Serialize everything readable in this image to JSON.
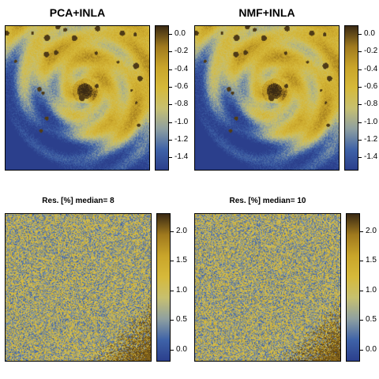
{
  "panels": [
    {
      "title": "PCA+INLA",
      "kind": "storm",
      "colorbar_ticks": [
        "0.0",
        "-0.2",
        "-0.4",
        "-0.6",
        "-0.8",
        "-1.0",
        "-1.2",
        "-1.4"
      ],
      "colorbar_range": [
        -1.55,
        0.1
      ]
    },
    {
      "title": "NMF+INLA",
      "kind": "storm",
      "colorbar_ticks": [
        "0.0",
        "-0.2",
        "-0.4",
        "-0.6",
        "-0.8",
        "-1.0",
        "-1.2",
        "-1.4"
      ],
      "colorbar_range": [
        -1.55,
        0.1
      ]
    },
    {
      "title": "Res. [%]  median= 8",
      "kind": "residual",
      "colorbar_ticks": [
        "2.0",
        "1.5",
        "1.0",
        "0.5",
        "0.0"
      ],
      "colorbar_range": [
        -0.2,
        2.3
      ]
    },
    {
      "title": "Res. [%]  median= 10",
      "kind": "residual",
      "colorbar_ticks": [
        "2.0",
        "1.5",
        "1.0",
        "0.5",
        "0.0"
      ],
      "colorbar_range": [
        -0.2,
        2.3
      ]
    }
  ],
  "colormap": [
    "#2b3f8c",
    "#3f63a8",
    "#8fa0a0",
    "#c7c070",
    "#d6b93a",
    "#c9a52a",
    "#a07a1e",
    "#3a2a14"
  ],
  "chart_data": [
    {
      "type": "heatmap",
      "title": "PCA+INLA",
      "colorbar_ticks": [
        0.0,
        -0.2,
        -0.4,
        -0.6,
        -0.8,
        -1.0,
        -1.2,
        -1.4
      ]
    },
    {
      "type": "heatmap",
      "title": "NMF+INLA",
      "colorbar_ticks": [
        0.0,
        -0.2,
        -0.4,
        -0.6,
        -0.8,
        -1.0,
        -1.2,
        -1.4
      ]
    },
    {
      "type": "heatmap",
      "title": "Res. [%]  median= 8",
      "colorbar_ticks": [
        2.0,
        1.5,
        1.0,
        0.5,
        0.0
      ]
    },
    {
      "type": "heatmap",
      "title": "Res. [%]  median= 10",
      "colorbar_ticks": [
        2.0,
        1.5,
        1.0,
        0.5,
        0.0
      ]
    }
  ]
}
